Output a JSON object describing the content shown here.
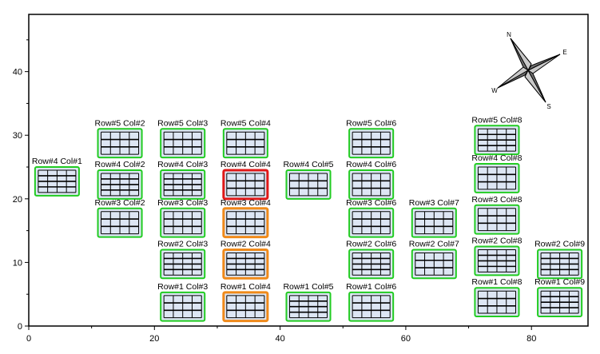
{
  "plot": {
    "x_ticks": [
      "0",
      "20",
      "40",
      "60",
      "80"
    ],
    "y_ticks": [
      "0",
      "10",
      "20",
      "30",
      "40"
    ],
    "x_range": [
      0,
      89
    ],
    "y_range": [
      0,
      49
    ],
    "compass": {
      "n": "N",
      "e": "E",
      "s": "S",
      "w": "W"
    }
  },
  "colors": {
    "normal_border": "#22cc22",
    "selected_border": "#e01818",
    "highlight_border": "#f08a1a",
    "cell_fill": "#dde6f4",
    "grid_line": "#000000"
  },
  "wells": [
    {
      "label": "Row#4 Col#1",
      "x": 1,
      "y": 20.5,
      "w": 7,
      "h": 4.5,
      "cols": 4,
      "rows": 4,
      "state": "normal"
    },
    {
      "label": "Row#5 Col#2",
      "x": 11,
      "y": 26.5,
      "w": 7,
      "h": 4.5,
      "cols": 4,
      "rows": 3,
      "state": "normal"
    },
    {
      "label": "Row#4 Col#2",
      "x": 11,
      "y": 20,
      "w": 7,
      "h": 4.5,
      "cols": 4,
      "rows": 4,
      "state": "normal"
    },
    {
      "label": "Row#3 Col#2",
      "x": 11,
      "y": 14,
      "w": 7,
      "h": 4.5,
      "cols": 4,
      "rows": 3,
      "state": "normal"
    },
    {
      "label": "Row#5 Col#3",
      "x": 21,
      "y": 26.5,
      "w": 7,
      "h": 4.5,
      "cols": 4,
      "rows": 3,
      "state": "normal"
    },
    {
      "label": "Row#4 Col#3",
      "x": 21,
      "y": 20,
      "w": 7,
      "h": 4.5,
      "cols": 4,
      "rows": 4,
      "state": "normal"
    },
    {
      "label": "Row#3 Col#3",
      "x": 21,
      "y": 14,
      "w": 7,
      "h": 4.5,
      "cols": 4,
      "rows": 3,
      "state": "normal"
    },
    {
      "label": "Row#2 Col#3",
      "x": 21,
      "y": 7.5,
      "w": 7,
      "h": 4.5,
      "cols": 4,
      "rows": 4,
      "state": "normal"
    },
    {
      "label": "Row#1 Col#3",
      "x": 21,
      "y": 0.8,
      "w": 7,
      "h": 4.5,
      "cols": 4,
      "rows": 3,
      "state": "normal"
    },
    {
      "label": "Row#5 Col#4",
      "x": 31,
      "y": 26.5,
      "w": 7,
      "h": 4.5,
      "cols": 4,
      "rows": 3,
      "state": "normal"
    },
    {
      "label": "Row#4 Col#4",
      "x": 31,
      "y": 20,
      "w": 7,
      "h": 4.5,
      "cols": 4,
      "rows": 3,
      "state": "selected"
    },
    {
      "label": "Row#3 Col#4",
      "x": 31,
      "y": 14,
      "w": 7,
      "h": 4.5,
      "cols": 4,
      "rows": 3,
      "state": "highlight"
    },
    {
      "label": "Row#2 Col#4",
      "x": 31,
      "y": 7.5,
      "w": 7,
      "h": 4.5,
      "cols": 4,
      "rows": 4,
      "state": "highlight"
    },
    {
      "label": "Row#1 Col#4",
      "x": 31,
      "y": 0.8,
      "w": 7,
      "h": 4.5,
      "cols": 4,
      "rows": 3,
      "state": "highlight"
    },
    {
      "label": "Row#4 Col#5",
      "x": 41,
      "y": 20,
      "w": 7,
      "h": 4.5,
      "cols": 4,
      "rows": 3,
      "state": "normal"
    },
    {
      "label": "Row#1 Col#5",
      "x": 41,
      "y": 0.8,
      "w": 7,
      "h": 4.5,
      "cols": 4,
      "rows": 4,
      "state": "normal"
    },
    {
      "label": "Row#5 Col#6",
      "x": 51,
      "y": 26.5,
      "w": 7,
      "h": 4.5,
      "cols": 4,
      "rows": 3,
      "state": "normal"
    },
    {
      "label": "Row#4 Col#6",
      "x": 51,
      "y": 20,
      "w": 7,
      "h": 4.5,
      "cols": 4,
      "rows": 3,
      "state": "normal"
    },
    {
      "label": "Row#3 Col#6",
      "x": 51,
      "y": 14,
      "w": 7,
      "h": 4.5,
      "cols": 4,
      "rows": 3,
      "state": "normal"
    },
    {
      "label": "Row#2 Col#6",
      "x": 51,
      "y": 7.5,
      "w": 7,
      "h": 4.5,
      "cols": 4,
      "rows": 4,
      "state": "normal"
    },
    {
      "label": "Row#1 Col#6",
      "x": 51,
      "y": 0.8,
      "w": 7,
      "h": 4.5,
      "cols": 4,
      "rows": 3,
      "state": "normal"
    },
    {
      "label": "Row#3 Col#7",
      "x": 61,
      "y": 14,
      "w": 7,
      "h": 4.5,
      "cols": 4,
      "rows": 3,
      "state": "normal"
    },
    {
      "label": "Row#2 Col#7",
      "x": 61,
      "y": 7.5,
      "w": 7,
      "h": 4.5,
      "cols": 4,
      "rows": 3,
      "state": "normal"
    },
    {
      "label": "Row#5 Col#8",
      "x": 71,
      "y": 27,
      "w": 7,
      "h": 4.5,
      "cols": 4,
      "rows": 4,
      "state": "normal"
    },
    {
      "label": "Row#4 Col#8",
      "x": 71,
      "y": 21,
      "w": 7,
      "h": 4.5,
      "cols": 4,
      "rows": 3,
      "state": "normal"
    },
    {
      "label": "Row#3 Col#8",
      "x": 71,
      "y": 14.5,
      "w": 7,
      "h": 4.5,
      "cols": 4,
      "rows": 3,
      "state": "normal"
    },
    {
      "label": "Row#2 Col#8",
      "x": 71,
      "y": 8,
      "w": 7,
      "h": 4.5,
      "cols": 4,
      "rows": 4,
      "state": "normal"
    },
    {
      "label": "Row#1 Col#8",
      "x": 71,
      "y": 1.5,
      "w": 7,
      "h": 4.5,
      "cols": 4,
      "rows": 3,
      "state": "normal"
    },
    {
      "label": "Row#2 Col#9",
      "x": 81,
      "y": 7.5,
      "w": 7,
      "h": 4.5,
      "cols": 4,
      "rows": 4,
      "state": "normal"
    },
    {
      "label": "Row#1 Col#9",
      "x": 81,
      "y": 1.5,
      "w": 7,
      "h": 4.5,
      "cols": 4,
      "rows": 4,
      "state": "normal"
    }
  ]
}
